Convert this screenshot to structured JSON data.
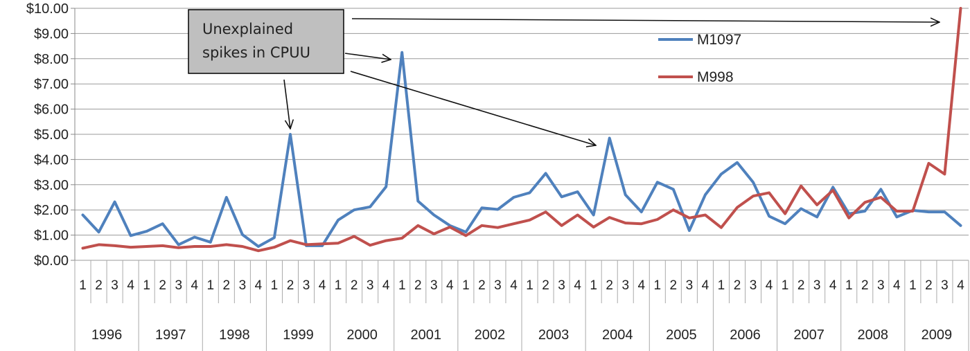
{
  "chart_data": {
    "type": "line",
    "ylim": [
      0,
      10
    ],
    "yticks": [
      0,
      1,
      2,
      3,
      4,
      5,
      6,
      7,
      8,
      9,
      10
    ],
    "ytick_labels": [
      "$0.00",
      "$1.00",
      "$2.00",
      "$3.00",
      "$4.00",
      "$5.00",
      "$6.00",
      "$7.00",
      "$8.00",
      "$9.00",
      "$10.00"
    ],
    "grid": true,
    "legend_position": "top-right",
    "quarters": [
      "1",
      "2",
      "3",
      "4"
    ],
    "years": [
      "1996",
      "1997",
      "1998",
      "1999",
      "2000",
      "2001",
      "2002",
      "2003",
      "2004",
      "2005",
      "2006",
      "2007",
      "2008",
      "2009"
    ],
    "series": [
      {
        "name": "M1097",
        "color": "#4f81bd",
        "values": [
          1.8,
          1.12,
          2.32,
          0.98,
          1.15,
          1.45,
          0.62,
          0.92,
          0.72,
          2.5,
          1.02,
          0.55,
          0.9,
          5.0,
          0.58,
          0.58,
          1.6,
          2.0,
          2.12,
          2.92,
          8.25,
          2.35,
          1.8,
          1.38,
          1.12,
          2.08,
          2.02,
          2.5,
          2.68,
          3.45,
          2.52,
          2.72,
          1.8,
          4.85,
          2.6,
          1.92,
          3.1,
          2.82,
          1.18,
          2.6,
          3.42,
          3.88,
          3.1,
          1.75,
          1.45,
          2.05,
          1.72,
          2.9,
          1.85,
          1.95,
          2.82,
          1.72,
          1.98,
          1.92,
          1.92,
          1.38
        ]
      },
      {
        "name": "M998",
        "color": "#c0504d",
        "values": [
          0.48,
          0.62,
          0.58,
          0.52,
          0.55,
          0.58,
          0.5,
          0.55,
          0.55,
          0.62,
          0.55,
          0.38,
          0.52,
          0.78,
          0.62,
          0.65,
          0.68,
          0.95,
          0.6,
          0.78,
          0.88,
          1.38,
          1.05,
          1.32,
          0.98,
          1.38,
          1.3,
          1.45,
          1.6,
          1.92,
          1.38,
          1.8,
          1.32,
          1.7,
          1.48,
          1.45,
          1.62,
          2.0,
          1.68,
          1.8,
          1.3,
          2.1,
          2.55,
          2.68,
          1.85,
          2.95,
          2.2,
          2.78,
          1.68,
          2.3,
          2.5,
          1.95,
          1.95,
          3.85,
          3.42,
          10.0
        ]
      }
    ],
    "annotation": {
      "lines": [
        "Unexplained",
        "spikes in CPUU"
      ]
    }
  }
}
